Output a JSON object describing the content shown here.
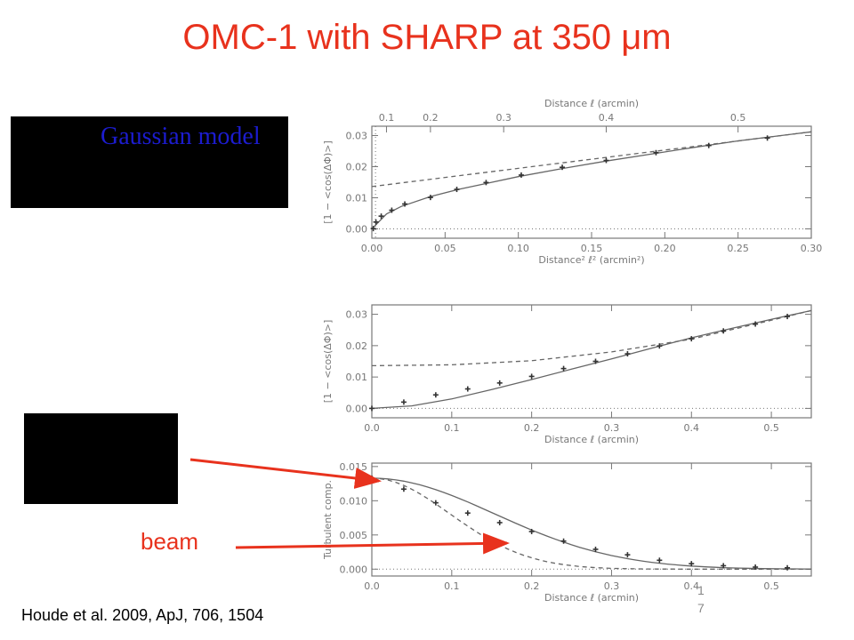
{
  "slide": {
    "title": "OMC-1 with SHARP at 350 μm",
    "model_label": "Gaussian model",
    "beam_label": "beam",
    "citation": "Houde et al. 2009, ApJ, 706, 1504",
    "page_number_top": "1",
    "page_number_bottom": "7"
  },
  "colors": {
    "title": "#e8321d",
    "model_label": "#1c1ccf",
    "arrow": "#e8321d",
    "axes": "#777777"
  },
  "chart_data": [
    {
      "type": "line",
      "xlabel": "Distance² ℓ² (arcmin²)",
      "ylabel": "[1 − <cos(ΔΦ)>]",
      "top_axis_label": "Distance ℓ (arcmin)",
      "xlim": [
        0,
        0.3
      ],
      "ylim": [
        -0.003,
        0.033
      ],
      "xticks": [
        0.0,
        0.05,
        0.1,
        0.15,
        0.2,
        0.25,
        0.3
      ],
      "xtick_labels": [
        "0.00",
        "0.05",
        "0.10",
        "0.15",
        "0.20",
        "0.25",
        "0.30"
      ],
      "yticks": [
        0.0,
        0.01,
        0.02,
        0.03
      ],
      "ytick_labels": [
        "0.00",
        "0.01",
        "0.02",
        "0.03"
      ],
      "top_ticks": [
        0.1,
        0.2,
        0.3,
        0.4,
        0.5
      ],
      "top_tick_labels": [
        "0.1",
        "0.2",
        "0.3",
        "0.4",
        "0.5"
      ],
      "points": [
        [
          0.001,
          0.0001
        ],
        [
          0.0028,
          0.0022
        ],
        [
          0.0064,
          0.0041
        ],
        [
          0.0136,
          0.006
        ],
        [
          0.0225,
          0.008
        ],
        [
          0.04,
          0.0101
        ],
        [
          0.058,
          0.0127
        ],
        [
          0.078,
          0.0149
        ],
        [
          0.102,
          0.0173
        ],
        [
          0.13,
          0.0198
        ],
        [
          0.16,
          0.022
        ],
        [
          0.194,
          0.0245
        ],
        [
          0.23,
          0.0268
        ],
        [
          0.27,
          0.0292
        ]
      ],
      "fit_solid": [
        [
          0,
          0
        ],
        [
          0.01,
          0.0048
        ],
        [
          0.02,
          0.0072
        ],
        [
          0.04,
          0.0104
        ],
        [
          0.06,
          0.0128
        ],
        [
          0.08,
          0.0148
        ],
        [
          0.1,
          0.0168
        ],
        [
          0.13,
          0.0194
        ],
        [
          0.16,
          0.0218
        ],
        [
          0.19,
          0.024
        ],
        [
          0.22,
          0.0262
        ],
        [
          0.25,
          0.0283
        ],
        [
          0.3,
          0.0312
        ]
      ],
      "fit_dashed": [
        [
          0,
          0.0136
        ],
        [
          0.3,
          0.0312
        ]
      ],
      "zero_line": 0.0,
      "vertical_dotted_x": 0.0025
    },
    {
      "type": "line",
      "xlabel": "Distance ℓ (arcmin)",
      "ylabel": "[1 − <cos(ΔΦ)>]",
      "xlim": [
        0,
        0.55
      ],
      "ylim": [
        -0.003,
        0.033
      ],
      "xticks": [
        0.0,
        0.1,
        0.2,
        0.3,
        0.4,
        0.5
      ],
      "xtick_labels": [
        "0.0",
        "0.1",
        "0.2",
        "0.3",
        "0.4",
        "0.5"
      ],
      "yticks": [
        0.0,
        0.01,
        0.02,
        0.03
      ],
      "ytick_labels": [
        "0.00",
        "0.01",
        "0.02",
        "0.03"
      ],
      "points": [
        [
          0.0,
          0.0
        ],
        [
          0.04,
          0.002
        ],
        [
          0.08,
          0.0043
        ],
        [
          0.12,
          0.0062
        ],
        [
          0.16,
          0.0081
        ],
        [
          0.2,
          0.0102
        ],
        [
          0.24,
          0.0127
        ],
        [
          0.28,
          0.015
        ],
        [
          0.32,
          0.0174
        ],
        [
          0.36,
          0.0199
        ],
        [
          0.4,
          0.0222
        ],
        [
          0.44,
          0.0247
        ],
        [
          0.48,
          0.0269
        ],
        [
          0.52,
          0.0293
        ]
      ],
      "fit_solid": [
        [
          0,
          0
        ],
        [
          0.05,
          0.0008
        ],
        [
          0.1,
          0.003
        ],
        [
          0.15,
          0.006
        ],
        [
          0.2,
          0.0092
        ],
        [
          0.25,
          0.0125
        ],
        [
          0.3,
          0.0158
        ],
        [
          0.35,
          0.0192
        ],
        [
          0.4,
          0.0225
        ],
        [
          0.45,
          0.0255
        ],
        [
          0.5,
          0.0284
        ],
        [
          0.55,
          0.0312
        ]
      ],
      "fit_dashed": [
        [
          0,
          0.0136
        ],
        [
          0.1,
          0.0139
        ],
        [
          0.2,
          0.0152
        ],
        [
          0.3,
          0.018
        ],
        [
          0.4,
          0.0221
        ],
        [
          0.5,
          0.0281
        ],
        [
          0.55,
          0.0312
        ]
      ],
      "zero_line": 0.0
    },
    {
      "type": "line",
      "xlabel": "Distance ℓ (arcmin)",
      "ylabel": "Turbulent comp.",
      "xlim": [
        0,
        0.55
      ],
      "ylim": [
        -0.001,
        0.0155
      ],
      "xticks": [
        0.0,
        0.1,
        0.2,
        0.3,
        0.4,
        0.5
      ],
      "xtick_labels": [
        "0.0",
        "0.1",
        "0.2",
        "0.3",
        "0.4",
        "0.5"
      ],
      "yticks": [
        0.0,
        0.005,
        0.01,
        0.015
      ],
      "ytick_labels": [
        "0.000",
        "0.005",
        "0.010",
        "0.015"
      ],
      "points": [
        [
          0.0,
          0.0133
        ],
        [
          0.04,
          0.0117
        ],
        [
          0.08,
          0.0097
        ],
        [
          0.12,
          0.0082
        ],
        [
          0.16,
          0.0068
        ],
        [
          0.2,
          0.0055
        ],
        [
          0.24,
          0.0041
        ],
        [
          0.28,
          0.0029
        ],
        [
          0.32,
          0.0021
        ],
        [
          0.36,
          0.0013
        ],
        [
          0.4,
          0.0008
        ],
        [
          0.44,
          0.0005
        ],
        [
          0.48,
          0.0003
        ],
        [
          0.52,
          0.0002
        ]
      ],
      "fit_solid_sigma": 0.154,
      "fit_dashed_sigma": 0.098,
      "amplitude": 0.0133,
      "zero_line": 0.0
    }
  ]
}
